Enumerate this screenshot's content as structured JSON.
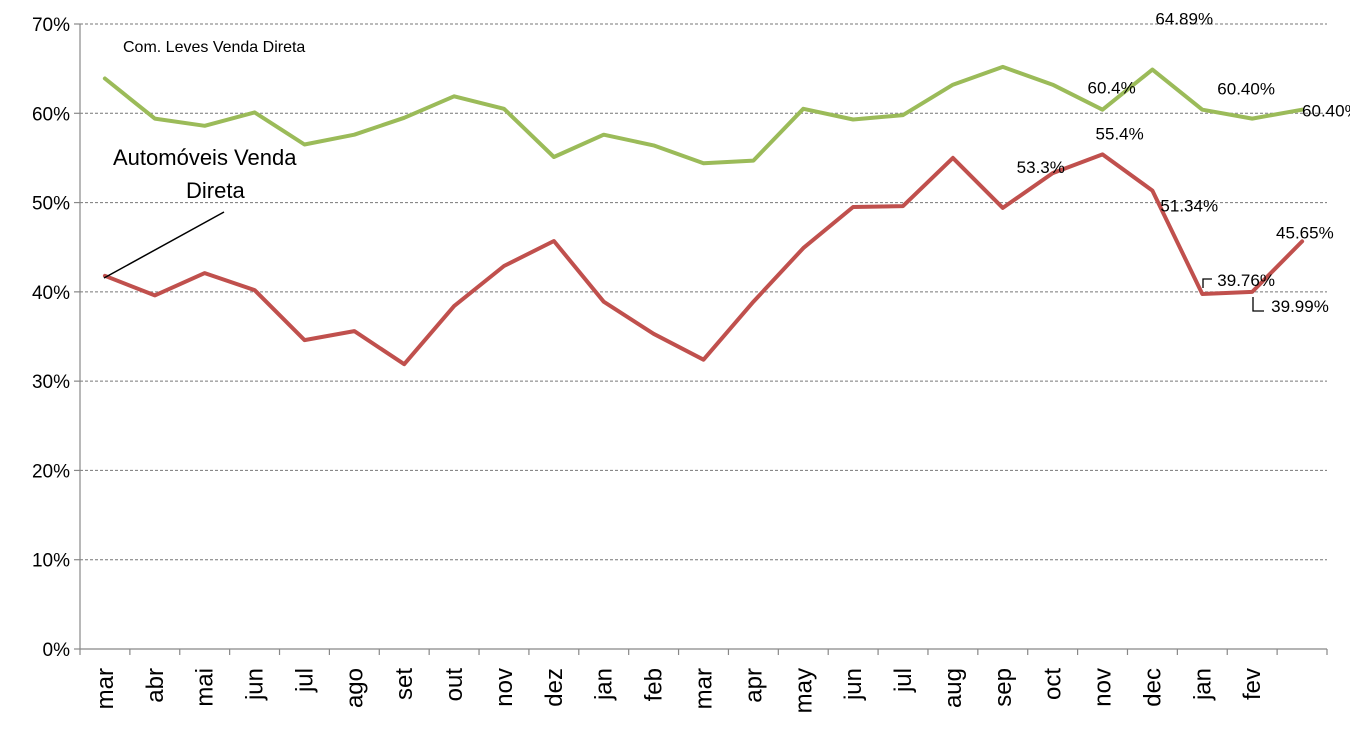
{
  "chart_data": {
    "type": "line",
    "categories": [
      "mar",
      "abr",
      "mai",
      "jun",
      "jul",
      "ago",
      "set",
      "out",
      "nov",
      "dez",
      "jan",
      "feb",
      "mar",
      "apr",
      "may",
      "jun",
      "jul",
      "aug",
      "sep",
      "oct",
      "nov",
      "dec",
      "jan",
      "fev",
      ""
    ],
    "y_ticks": [
      "0%",
      "10%",
      "20%",
      "30%",
      "40%",
      "50%",
      "60%",
      "70%"
    ],
    "ylim": [
      0,
      70
    ],
    "y_unit": "%",
    "grid": "horizontal dashed",
    "legend": "none",
    "series": [
      {
        "name": "Com. Leves Venda Direta",
        "color": "#9bbb59",
        "values": [
          63.9,
          59.4,
          58.6,
          60.1,
          56.5,
          57.6,
          59.5,
          61.9,
          60.5,
          55.1,
          57.6,
          56.4,
          54.4,
          54.7,
          60.5,
          59.3,
          59.8,
          63.2,
          65.2,
          63.2,
          60.4,
          64.89,
          60.4,
          59.4,
          60.4
        ]
      },
      {
        "name": "Automóveis Venda Direta",
        "color": "#c0504d",
        "values": [
          41.8,
          39.6,
          42.1,
          40.2,
          34.6,
          35.6,
          31.9,
          38.4,
          42.9,
          45.7,
          38.9,
          35.3,
          32.4,
          38.9,
          44.9,
          49.5,
          49.6,
          55.0,
          49.4,
          53.3,
          55.4,
          51.34,
          39.76,
          39.99,
          45.65
        ]
      }
    ],
    "data_labels": [
      {
        "series": 0,
        "index": 20,
        "text": "60.4%"
      },
      {
        "series": 0,
        "index": 21,
        "text": "64.89%"
      },
      {
        "series": 0,
        "index": 22,
        "text": "60.40%"
      },
      {
        "series": 0,
        "index": 24,
        "text": "60.40%"
      },
      {
        "series": 1,
        "index": 19,
        "text": "53.3%"
      },
      {
        "series": 1,
        "index": 20,
        "text": "55.4%"
      },
      {
        "series": 1,
        "index": 21,
        "text": "51.34%"
      },
      {
        "series": 1,
        "index": 22,
        "text": "39.76%"
      },
      {
        "series": 1,
        "index": 23,
        "text": "39.99%"
      },
      {
        "series": 1,
        "index": 24,
        "text": "45.65%"
      }
    ],
    "annotations": {
      "series0_label": "Com. Leves Venda Direta",
      "series1_label_line1": "Automóveis Venda",
      "series1_label_line2": "Direta"
    }
  }
}
